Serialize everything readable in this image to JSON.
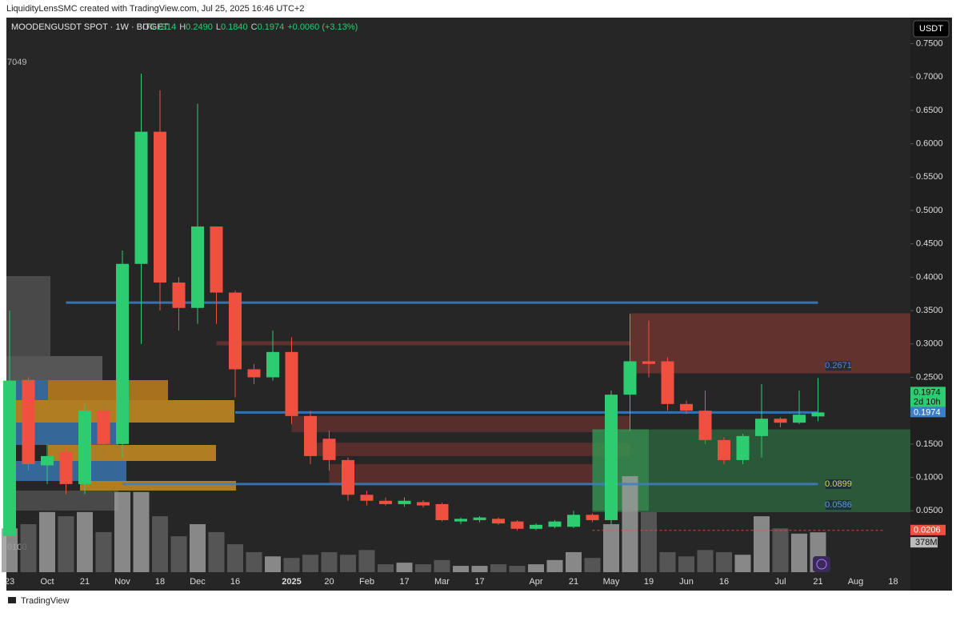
{
  "header": {
    "credit": "LiquidityLensSMC created with TradingView.com, Jul 25, 2025 16:46 UTC+2",
    "footer": "TradingView"
  },
  "chart_data": {
    "type": "candlestick",
    "symbol": "MOODENGUSDT SPOT · 1W · BITGET",
    "ohlc_text": [
      {
        "key": "O",
        "value": "0.1914"
      },
      {
        "key": "H",
        "value": "0.2490"
      },
      {
        "key": "L",
        "value": "0.1840"
      },
      {
        "key": "C",
        "value": "0.1974"
      }
    ],
    "change_text": "+0.0060 (+3.13%)",
    "currency": "USDT",
    "edge_labels": [
      "7049",
      "0100"
    ],
    "categories": [
      "23",
      null,
      "Oct",
      null,
      "21",
      null,
      "Nov",
      null,
      "18",
      null,
      "Dec",
      null,
      "16",
      null,
      null,
      "2025",
      null,
      "20",
      null,
      "Feb",
      null,
      "17",
      null,
      "Mar",
      null,
      "17",
      null,
      null,
      "Apr",
      null,
      "21",
      null,
      "May",
      null,
      "19",
      null,
      "Jun",
      null,
      "16",
      null,
      null,
      "Jul",
      null,
      "21",
      null,
      "Aug",
      null,
      "18"
    ],
    "open": [
      0.012,
      0.246,
      0.118,
      0.138,
      0.09,
      0.2,
      0.15,
      0.42,
      0.618,
      0.392,
      0.354,
      0.476,
      0.377,
      0.262,
      0.25,
      0.288,
      0.192,
      0.158,
      0.126,
      0.074,
      0.065,
      0.06,
      0.063,
      0.06,
      0.034,
      0.036,
      0.038,
      0.034,
      0.023,
      0.026,
      0.026,
      0.044,
      0.036,
      0.224,
      0.274,
      0.274,
      0.21,
      0.2,
      0.156,
      0.126,
      0.162,
      0.188,
      0.182,
      0.1914,
      null,
      null,
      null,
      null
    ],
    "high": [
      0.35,
      0.25,
      0.15,
      0.145,
      0.21,
      0.21,
      0.44,
      0.705,
      0.68,
      0.4,
      0.66,
      0.476,
      0.38,
      0.27,
      0.32,
      0.31,
      0.2,
      0.17,
      0.13,
      0.08,
      0.07,
      0.07,
      0.066,
      0.062,
      0.04,
      0.042,
      0.04,
      0.036,
      0.031,
      0.036,
      0.05,
      0.046,
      0.23,
      0.345,
      0.335,
      0.28,
      0.215,
      0.23,
      0.16,
      0.165,
      0.24,
      0.19,
      0.23,
      0.249,
      null,
      null,
      null,
      null
    ],
    "low": [
      0.01,
      0.11,
      0.09,
      0.075,
      0.075,
      0.13,
      0.13,
      0.3,
      0.35,
      0.32,
      0.33,
      0.33,
      0.22,
      0.24,
      0.245,
      0.18,
      0.12,
      0.11,
      0.065,
      0.058,
      0.058,
      0.056,
      0.055,
      0.034,
      0.03,
      0.033,
      0.029,
      0.02,
      0.021,
      0.024,
      0.024,
      0.033,
      0.03,
      0.17,
      0.25,
      0.2,
      0.195,
      0.15,
      0.12,
      0.12,
      0.13,
      0.175,
      0.18,
      0.184,
      null,
      null,
      null,
      null
    ],
    "close": [
      0.245,
      0.12,
      0.132,
      0.09,
      0.2,
      0.15,
      0.42,
      0.618,
      0.392,
      0.354,
      0.476,
      0.377,
      0.262,
      0.25,
      0.288,
      0.192,
      0.132,
      0.126,
      0.074,
      0.065,
      0.06,
      0.065,
      0.058,
      0.036,
      0.038,
      0.04,
      0.031,
      0.023,
      0.029,
      0.034,
      0.044,
      0.036,
      0.224,
      0.274,
      0.27,
      0.21,
      0.2,
      0.156,
      0.126,
      0.162,
      0.188,
      0.182,
      0.194,
      0.1974,
      null,
      null,
      null,
      null
    ],
    "up_color": "#2ecc71",
    "down_color": "#ef5040",
    "volume": {
      "values": [
        415,
        455,
        570,
        530,
        570,
        380,
        760,
        760,
        530,
        340,
        455,
        380,
        265,
        190,
        150,
        135,
        165,
        190,
        165,
        210,
        75,
        90,
        75,
        115,
        60,
        60,
        75,
        60,
        75,
        115,
        190,
        135,
        455,
        910,
        570,
        190,
        150,
        210,
        190,
        165,
        530,
        415,
        365,
        378,
        null,
        null,
        null,
        null
      ],
      "last_label": "378M"
    },
    "ylim": [
      -0.042,
      0.789
    ],
    "yticks": [
      {
        "value": 0.05,
        "label": "0.0500"
      },
      {
        "value": 0.1,
        "label": "0.1000"
      },
      {
        "value": 0.15,
        "label": "0.1500"
      },
      {
        "value": 0.2,
        "label": "0.2000"
      },
      {
        "value": 0.25,
        "label": "0.2500"
      },
      {
        "value": 0.3,
        "label": "0.3000"
      },
      {
        "value": 0.35,
        "label": "0.3500"
      },
      {
        "value": 0.4,
        "label": "0.4000"
      },
      {
        "value": 0.45,
        "label": "0.4500"
      },
      {
        "value": 0.5,
        "label": "0.5000"
      },
      {
        "value": 0.55,
        "label": "0.5500"
      },
      {
        "value": 0.6,
        "label": "0.6000"
      },
      {
        "value": 0.65,
        "label": "0.6500"
      },
      {
        "value": 0.7,
        "label": "0.7000"
      },
      {
        "value": 0.75,
        "label": "0.7500"
      }
    ],
    "zones": [
      {
        "x0": 33,
        "x1": 48,
        "low": 0.256,
        "high": 0.346,
        "color": "#8a3a36"
      },
      {
        "x0": 11,
        "x1": 33,
        "low": 0.298,
        "high": 0.304,
        "color": "#8a3a36"
      },
      {
        "x0": 15,
        "x1": 33,
        "low": 0.168,
        "high": 0.192,
        "color": "#7a3431"
      },
      {
        "x0": 16,
        "x1": 33,
        "low": 0.132,
        "high": 0.152,
        "color": "#7a3431"
      },
      {
        "x0": 17,
        "x1": 31,
        "low": 0.09,
        "high": 0.12,
        "color": "#7a3431"
      },
      {
        "x0": 31,
        "x1": 48,
        "low": 0.048,
        "high": 0.172,
        "color": "#2f7a45"
      },
      {
        "x0": 31,
        "x1": 34,
        "low": 0.05,
        "high": 0.172,
        "color": "#3a9a55"
      }
    ],
    "levels": [
      {
        "price": 0.362,
        "x0": 3,
        "x1": 43,
        "color": "#3d7fc4"
      },
      {
        "price": 0.1974,
        "x0": 12,
        "x1": 43,
        "color": "#3d7fc4"
      },
      {
        "price": 0.09,
        "x0": 6,
        "x1": 43,
        "color": "#3d7fc4"
      },
      {
        "price": 0.0206,
        "x0": 31,
        "x1": 46.5,
        "color": "#ef5040"
      }
    ],
    "level_labels": [
      {
        "value": 0.2671,
        "label": "0.2671",
        "color": "#5b7fe0"
      },
      {
        "value": 0.0899,
        "label": "0.0899",
        "color": "#d9d94a"
      },
      {
        "value": 0.0586,
        "label": "0.0586",
        "color": "#5b9fe0"
      }
    ],
    "axis_markers": [
      {
        "value": 0.1974,
        "label": "0.1974",
        "sub": "2d 10h",
        "color": "#2ecc71"
      },
      {
        "value": 0.1974,
        "label": "0.1974",
        "color": "#3d7fc4"
      },
      {
        "value": 0.0206,
        "label": "0.0206",
        "color": "#ef5040"
      }
    ]
  }
}
